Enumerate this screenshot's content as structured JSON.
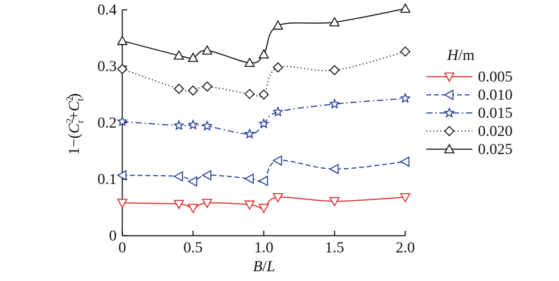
{
  "chart_data": {
    "type": "line",
    "xlabel_var": "B",
    "xlabel_sep": "/",
    "xlabel_var2": "L",
    "ylabel_prefix": "1−(",
    "ylabel_c1": "C",
    "ylabel_c1_sup": "2",
    "ylabel_c1_sub": "r",
    "ylabel_plus": "+",
    "ylabel_c2": "C",
    "ylabel_c2_sup": "2",
    "ylabel_c2_sub": "t",
    "ylabel_suffix": ")",
    "xlim": [
      0,
      2.0
    ],
    "ylim": [
      0,
      0.4
    ],
    "xticks": [
      "0",
      "0.5",
      "1.0",
      "1.5",
      "2.0"
    ],
    "xtick_values": [
      0,
      0.5,
      1.0,
      1.5,
      2.0
    ],
    "yticks": [
      "0",
      "0.1",
      "0.2",
      "0.3",
      "0.4"
    ],
    "ytick_values": [
      0,
      0.1,
      0.2,
      0.3,
      0.4
    ],
    "grid": false,
    "legend_placement": "right",
    "legend_title_var": "H",
    "legend_title_unit": "/m",
    "x": [
      0,
      0.4,
      0.5,
      0.6,
      0.9,
      1.0,
      1.1,
      1.5,
      2.0
    ],
    "series": [
      {
        "name": "0.005",
        "color": "#d62728",
        "dash": "solid",
        "marker": "triangle-down",
        "values": [
          0.058,
          0.056,
          0.049,
          0.058,
          0.055,
          0.049,
          0.068,
          0.061,
          0.068
        ]
      },
      {
        "name": "0.010",
        "color": "#1f3a93",
        "dash": "dashed",
        "marker": "triangle-left",
        "values": [
          0.107,
          0.105,
          0.096,
          0.107,
          0.101,
          0.097,
          0.133,
          0.118,
          0.131
        ]
      },
      {
        "name": "0.015",
        "color": "#1f3a93",
        "dash": "dashdot",
        "marker": "star",
        "values": [
          0.202,
          0.195,
          0.196,
          0.194,
          0.18,
          0.198,
          0.219,
          0.233,
          0.243
        ]
      },
      {
        "name": "0.020",
        "color": "#111111",
        "dash": "dotted",
        "marker": "diamond",
        "values": [
          0.295,
          0.26,
          0.257,
          0.264,
          0.251,
          0.25,
          0.298,
          0.293,
          0.326
        ]
      },
      {
        "name": "0.025",
        "color": "#111111",
        "dash": "solid",
        "marker": "triangle-up",
        "values": [
          0.345,
          0.319,
          0.315,
          0.328,
          0.306,
          0.321,
          0.372,
          0.378,
          0.402
        ]
      }
    ]
  }
}
